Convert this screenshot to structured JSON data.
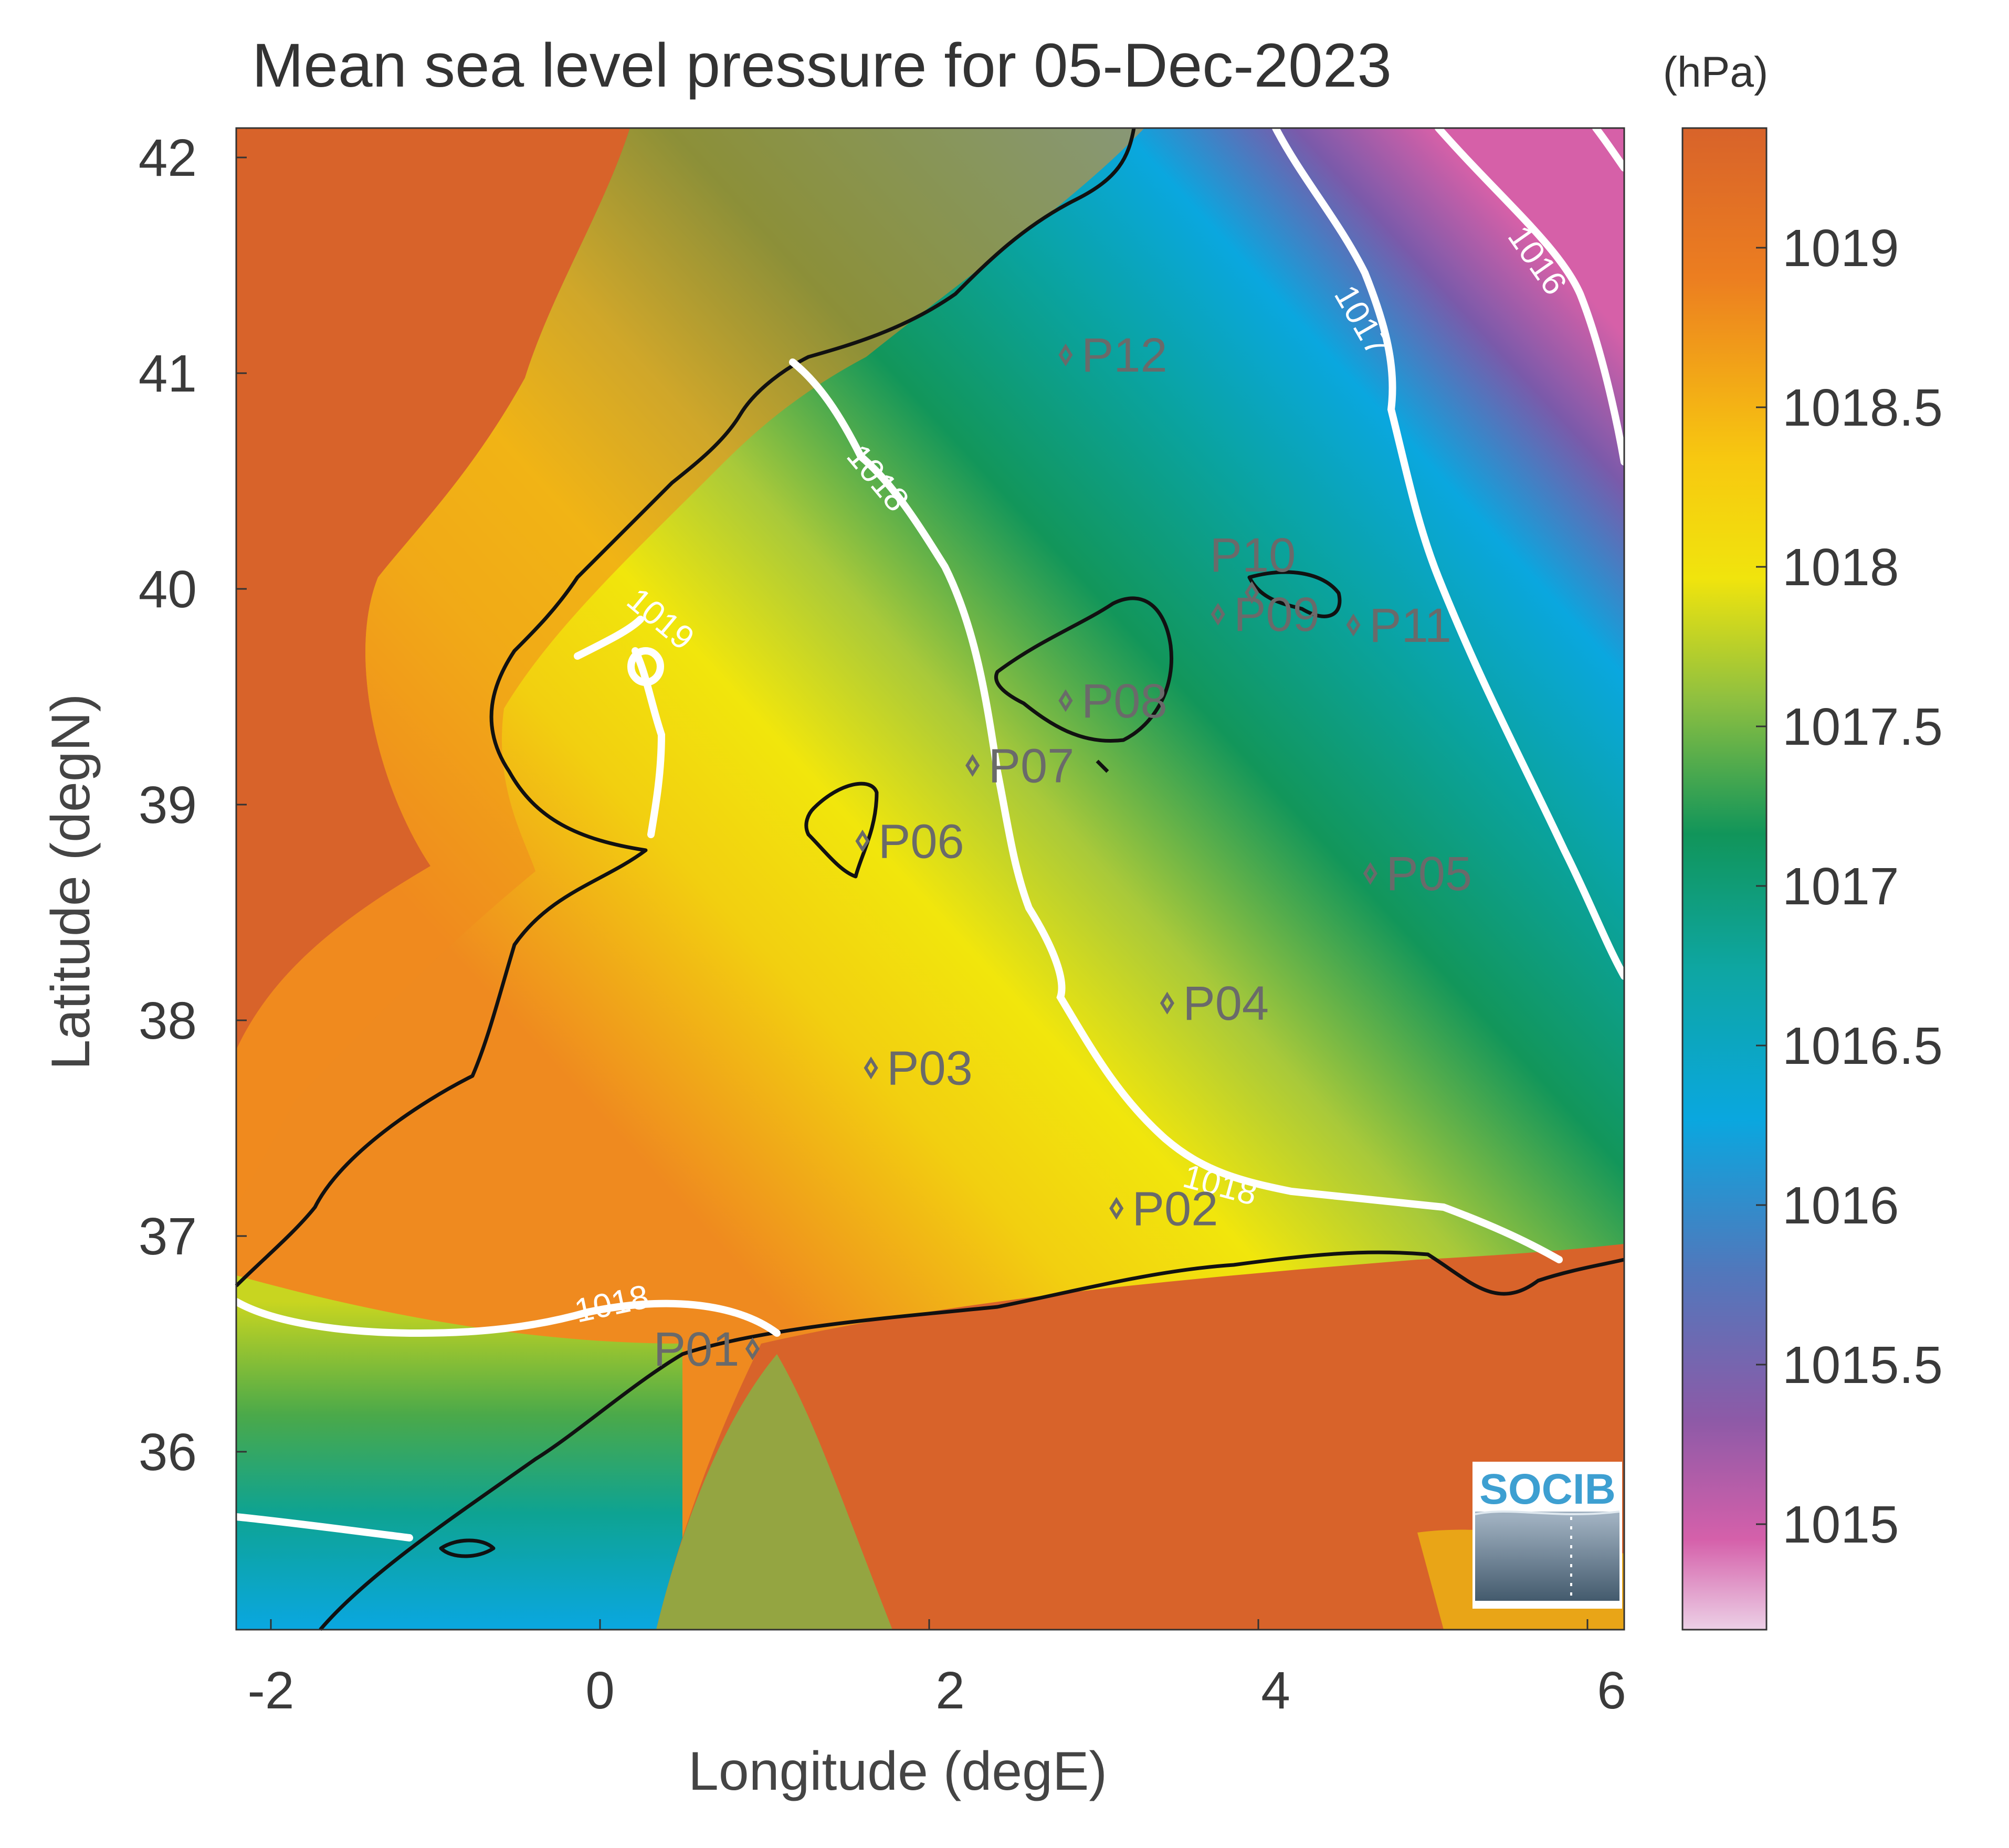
{
  "title": "Mean sea level pressure for 05-Dec-2023",
  "units_label": "(hPa)",
  "x_axis_label": "Longitude (degE)",
  "y_axis_label": "Latitude (degN)",
  "x_ticks": [
    "-2",
    "0",
    "2",
    "4",
    "6"
  ],
  "y_ticks": [
    "42",
    "41",
    "40",
    "39",
    "38",
    "37",
    "36"
  ],
  "colorbar_ticks": [
    "1019",
    "1018.5",
    "1018",
    "1017.5",
    "1017",
    "1016.5",
    "1016",
    "1015.5",
    "1015"
  ],
  "contour_labels": [
    {
      "text": "1016"
    },
    {
      "text": "1017"
    },
    {
      "text": "1018"
    },
    {
      "text": "1019"
    },
    {
      "text": "1018"
    },
    {
      "text": "1018"
    }
  ],
  "stations": [
    {
      "label": "P01"
    },
    {
      "label": "P02"
    },
    {
      "label": "P03"
    },
    {
      "label": "P04"
    },
    {
      "label": "P05"
    },
    {
      "label": "P06"
    },
    {
      "label": "P07"
    },
    {
      "label": "P08"
    },
    {
      "label": "P09"
    },
    {
      "label": "P10"
    },
    {
      "label": "P11"
    },
    {
      "label": "P12"
    }
  ],
  "logo_text": "SOCIB",
  "colors": {
    "land": "#d8632a",
    "high": "#e97c22",
    "yellow": "#f1d80e",
    "green": "#11955a",
    "teal": "#08a3a3",
    "blue": "#0aa7df",
    "purple": "#8a57a3",
    "pink": "#d660a8"
  },
  "chart_data": {
    "type": "heatmap",
    "variable": "Mean sea level pressure",
    "units": "hPa",
    "xlim": [
      -2.2,
      6
    ],
    "ylim": [
      35.2,
      42.15
    ],
    "colorbar_range": [
      1014.7,
      1019.4
    ],
    "contour_levels": [
      1016,
      1017,
      1018,
      1019
    ],
    "stations": [
      {
        "name": "P01",
        "lon": 0.85,
        "lat": 36.5
      },
      {
        "name": "P02",
        "lon": 3.0,
        "lat": 37.15
      },
      {
        "name": "P03",
        "lon": 1.55,
        "lat": 37.8
      },
      {
        "name": "P04",
        "lon": 3.3,
        "lat": 38.1
      },
      {
        "name": "P05",
        "lon": 4.5,
        "lat": 38.7
      },
      {
        "name": "P06",
        "lon": 1.5,
        "lat": 38.85
      },
      {
        "name": "P07",
        "lon": 2.15,
        "lat": 39.2
      },
      {
        "name": "P08",
        "lon": 2.7,
        "lat": 39.5
      },
      {
        "name": "P09",
        "lon": 3.6,
        "lat": 39.9
      },
      {
        "name": "P10",
        "lon": 3.8,
        "lat": 40.0
      },
      {
        "name": "P11",
        "lon": 4.4,
        "lat": 39.85
      },
      {
        "name": "P12",
        "lon": 2.7,
        "lat": 41.1
      }
    ]
  }
}
